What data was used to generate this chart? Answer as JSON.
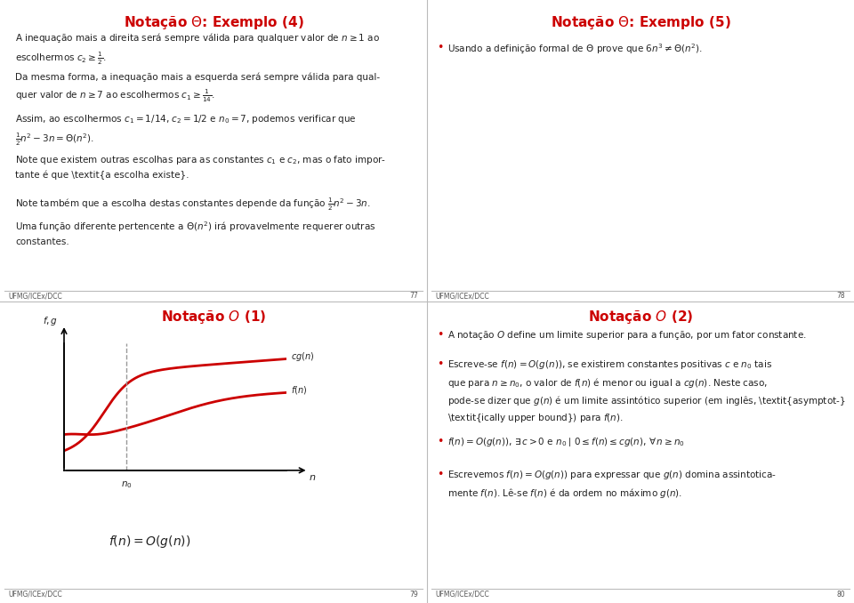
{
  "bg_color": "#ffffff",
  "divider_color": "#bbbbbb",
  "title_color": "#cc0000",
  "text_color": "#222222",
  "footer_text": "UFMG/ICEx/DCC",
  "page_numbers": [
    "77",
    "78",
    "79",
    "80"
  ],
  "curve_color": "#cc0000",
  "dashed_color": "#999999",
  "bullet_color": "#cc0000",
  "title_fontsize": 11,
  "body_fontsize": 7.5,
  "footer_fontsize": 5.5
}
